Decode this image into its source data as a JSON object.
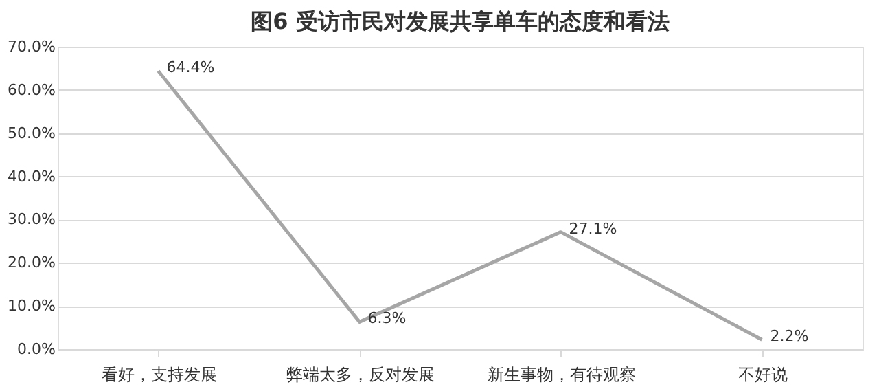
{
  "chart_data": {
    "type": "line",
    "title": "图6  受访市民对发展共享单车的态度和看法",
    "categories": [
      "看好，支持发展",
      "弊端太多，反对发展",
      "新生事物，有待观察",
      "不好说"
    ],
    "series": [
      {
        "color": "#a6a6a6",
        "values": [
          64.4,
          6.3,
          27.1,
          2.2
        ],
        "value_labels": [
          "64.4%",
          "6.3%",
          "27.1%",
          "2.2%"
        ]
      }
    ],
    "ylim": [
      0,
      70
    ],
    "yticks": [
      {
        "value": 0,
        "label": "0.0%"
      },
      {
        "value": 10,
        "label": "10.0%"
      },
      {
        "value": 20,
        "label": "20.0%"
      },
      {
        "value": 30,
        "label": "30.0%"
      },
      {
        "value": 40,
        "label": "40.0%"
      },
      {
        "value": 50,
        "label": "50.0%"
      },
      {
        "value": 60,
        "label": "60.0%"
      },
      {
        "value": 70,
        "label": "70.0%"
      }
    ],
    "grid": "y",
    "marker": "none",
    "line_style": "solid"
  }
}
